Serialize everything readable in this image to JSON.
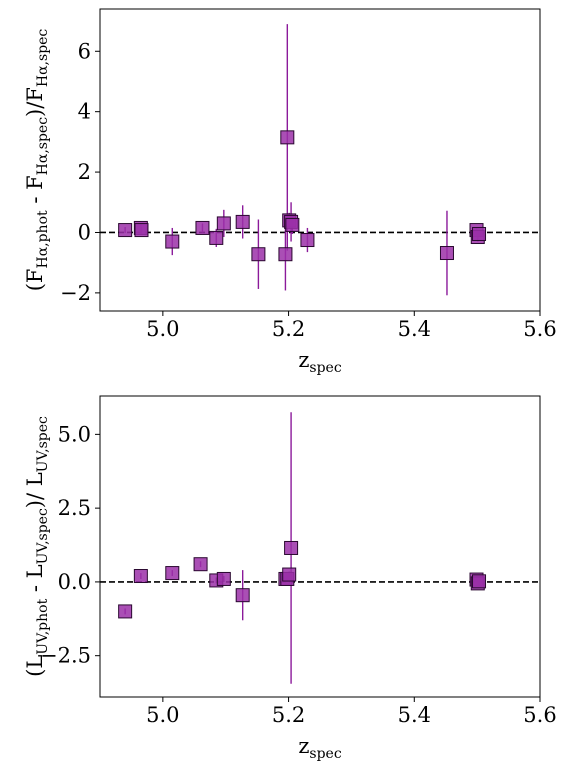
{
  "chart_data": [
    {
      "type": "scatter",
      "title": "",
      "xlabel": {
        "main": "z",
        "sub": "spec"
      },
      "ylabel": {
        "main1": "(F",
        "sub1": "Hα,phot",
        "main2": " - F",
        "sub2": "Hα,spec",
        "main3": ")/F",
        "sub3": "Hα,spec"
      },
      "xlim": [
        4.9,
        5.6
      ],
      "ylim": [
        -2.6,
        7.4
      ],
      "xticks": [
        "5.0",
        "5.2",
        "5.4",
        "5.6"
      ],
      "xtick_values": [
        5.0,
        5.2,
        5.4,
        5.6
      ],
      "yticks": [
        "−2",
        "0",
        "2",
        "4",
        "6"
      ],
      "ytick_values": [
        -2,
        0,
        2,
        4,
        6
      ],
      "reference_line": {
        "y": 0,
        "style": "dashed",
        "color": "#000000"
      },
      "marker": "square",
      "marker_color": "#9B30A8",
      "errorbar_color": "#8B1A9A",
      "points": [
        {
          "x": 4.94,
          "y": 0.08,
          "yerr": 0.1
        },
        {
          "x": 4.965,
          "y": 0.15,
          "yerr": 0.15
        },
        {
          "x": 4.966,
          "y": 0.08,
          "yerr": 0.1
        },
        {
          "x": 5.015,
          "y": -0.3,
          "yerr": 0.45
        },
        {
          "x": 5.063,
          "y": 0.15,
          "yerr": 0.15
        },
        {
          "x": 5.085,
          "y": -0.18,
          "yerr": 0.3
        },
        {
          "x": 5.097,
          "y": 0.3,
          "yerr": 0.45
        },
        {
          "x": 5.127,
          "y": 0.35,
          "yerr": 0.55
        },
        {
          "x": 5.152,
          "y": -0.72,
          "yerr": 1.15
        },
        {
          "x": 5.195,
          "y": -0.72,
          "yerr": 1.2
        },
        {
          "x": 5.198,
          "y": 3.15,
          "yerr": 3.75
        },
        {
          "x": 5.201,
          "y": 0.4,
          "yerr": 0.25
        },
        {
          "x": 5.204,
          "y": 0.35,
          "yerr": 0.65
        },
        {
          "x": 5.206,
          "y": 0.25,
          "yerr": 0.3
        },
        {
          "x": 5.23,
          "y": -0.25,
          "yerr": 0.4
        },
        {
          "x": 5.452,
          "y": -0.68,
          "yerr": 1.4
        },
        {
          "x": 5.499,
          "y": 0.08,
          "yerr": 0.1
        },
        {
          "x": 5.501,
          "y": -0.15,
          "yerr": 0.15
        },
        {
          "x": 5.503,
          "y": -0.05,
          "yerr": 0.1
        }
      ]
    },
    {
      "type": "scatter",
      "title": "",
      "xlabel": {
        "main": "z",
        "sub": "spec"
      },
      "ylabel": {
        "main1": "(L",
        "sub1": "UV,phot",
        "main2": " - L",
        "sub2": "UV,spec",
        "main3": ")/ L",
        "sub3": "UV,spec"
      },
      "xlim": [
        4.9,
        5.6
      ],
      "ylim": [
        -3.9,
        6.3
      ],
      "xticks": [
        "5.0",
        "5.2",
        "5.4",
        "5.6"
      ],
      "xtick_values": [
        5.0,
        5.2,
        5.4,
        5.6
      ],
      "yticks": [
        "−2.5",
        "0.0",
        "2.5",
        "5.0"
      ],
      "ytick_values": [
        -2.5,
        0.0,
        2.5,
        5.0
      ],
      "reference_line": {
        "y": 0,
        "style": "dashed",
        "color": "#000000"
      },
      "marker": "square",
      "marker_color": "#9B30A8",
      "errorbar_color": "#8B1A9A",
      "points": [
        {
          "x": 4.94,
          "y": -1.0,
          "yerr": 0.1
        },
        {
          "x": 4.965,
          "y": 0.2,
          "yerr": 0.1
        },
        {
          "x": 5.015,
          "y": 0.3,
          "yerr": 0.1
        },
        {
          "x": 5.06,
          "y": 0.6,
          "yerr": 0.1
        },
        {
          "x": 5.085,
          "y": 0.05,
          "yerr": 0.1
        },
        {
          "x": 5.097,
          "y": 0.1,
          "yerr": 0.1
        },
        {
          "x": 5.127,
          "y": -0.45,
          "yerr": 0.85
        },
        {
          "x": 5.195,
          "y": 0.1,
          "yerr": 0.1
        },
        {
          "x": 5.198,
          "y": 0.1,
          "yerr": 0.1
        },
        {
          "x": 5.201,
          "y": 0.25,
          "yerr": 0.1
        },
        {
          "x": 5.204,
          "y": 1.15,
          "yerr": 4.6
        },
        {
          "x": 5.499,
          "y": 0.08,
          "yerr": 0.1
        },
        {
          "x": 5.501,
          "y": -0.05,
          "yerr": 0.1
        },
        {
          "x": 5.503,
          "y": 0.02,
          "yerr": 0.1
        }
      ]
    }
  ]
}
